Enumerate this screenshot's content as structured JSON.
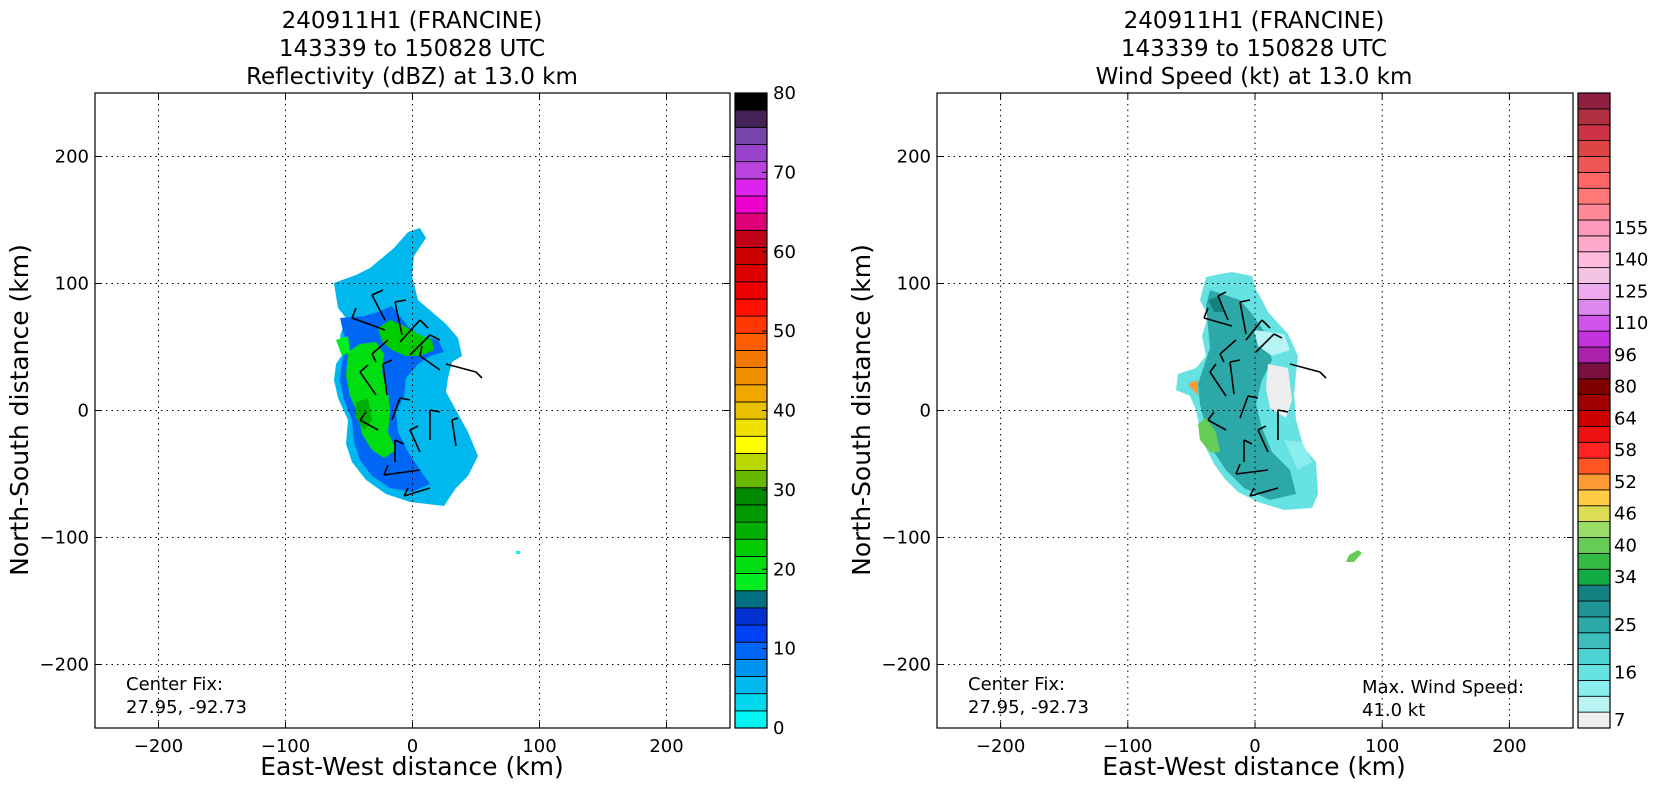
{
  "chart_data": [
    {
      "type": "heatmap",
      "title_lines": [
        "240911H1 (FRANCINE)",
        "143339 to 150828 UTC",
        "Reflectivity (dBZ) at 13.0 km"
      ],
      "xlabel": "East-West distance (km)",
      "ylabel": "North-South distance (km)",
      "xlim": [
        -250,
        250
      ],
      "ylim": [
        -250,
        250
      ],
      "x_ticks": [
        -200,
        -100,
        0,
        100,
        200
      ],
      "y_ticks": [
        -200,
        -100,
        0,
        100,
        200
      ],
      "grid": true,
      "annotation_left": [
        "Center Fix:",
        "27.95, -92.73"
      ],
      "colorbar": {
        "min": 0,
        "max": 80,
        "tick_values": [
          0,
          10,
          20,
          30,
          40,
          50,
          60,
          70,
          80
        ],
        "tick_labels": [
          "0",
          "10",
          "20",
          "30",
          "40",
          "50",
          "60",
          "70",
          "80"
        ],
        "colors": [
          "#00f5f5",
          "#00d8ee",
          "#00b8ee",
          "#0094f0",
          "#0066f5",
          "#0040f5",
          "#0030d0",
          "#007080",
          "#00ee22",
          "#00dd11",
          "#00cc00",
          "#00b000",
          "#009a00",
          "#008800",
          "#66b800",
          "#b8d800",
          "#ffff00",
          "#f0e000",
          "#e8c000",
          "#f0a800",
          "#f09000",
          "#f07800",
          "#ff5e00",
          "#ff3800",
          "#ff1000",
          "#ee0000",
          "#dd0000",
          "#cc0000",
          "#c00018",
          "#dd0077",
          "#ee00cc",
          "#dd22ee",
          "#b844dd",
          "#9944cc",
          "#7744aa",
          "#442255",
          "#000000"
        ]
      }
    },
    {
      "type": "heatmap",
      "title_lines": [
        "240911H1 (FRANCINE)",
        "143339 to 150828 UTC",
        "Wind Speed (kt) at 13.0 km"
      ],
      "xlabel": "East-West distance (km)",
      "ylabel": "North-South distance (km)",
      "xlim": [
        -250,
        250
      ],
      "ylim": [
        -250,
        250
      ],
      "x_ticks": [
        -200,
        -100,
        0,
        100,
        200
      ],
      "y_ticks": [
        -200,
        -100,
        0,
        100,
        200
      ],
      "grid": true,
      "annotation_left": [
        "Center Fix:",
        "27.95, -92.73"
      ],
      "annotation_right": [
        "Max. Wind Speed:",
        "41.0 kt"
      ],
      "colorbar": {
        "tick_labels": [
          "7",
          "16",
          "25",
          "34",
          "40",
          "46",
          "52",
          "58",
          "64",
          "80",
          "96",
          "110",
          "125",
          "140",
          "155"
        ],
        "tick_levels": [
          0,
          3,
          6,
          9,
          11,
          13,
          15,
          17,
          19,
          21,
          23,
          25,
          27,
          29,
          31
        ],
        "colors": [
          "#eeeeee",
          "#b8f4f4",
          "#8aeeee",
          "#66e2e2",
          "#4cd2d2",
          "#3cbcbc",
          "#2ca8a8",
          "#209494",
          "#148080",
          "#11aa44",
          "#33bb44",
          "#66cc55",
          "#99dd66",
          "#dddd55",
          "#ffcc44",
          "#ff9933",
          "#ff5522",
          "#ff2222",
          "#ee1111",
          "#cc0000",
          "#a00000",
          "#800000",
          "#7a1040",
          "#aa22aa",
          "#c433dd",
          "#d055ee",
          "#dd88ee",
          "#eeaaee",
          "#f4c4e4",
          "#ffbbdd",
          "#ffaacc",
          "#ff99bb",
          "#ff8899",
          "#ff7777",
          "#ff6666",
          "#ee5555",
          "#dd4444",
          "#cc3344",
          "#b03040",
          "#902040"
        ]
      }
    }
  ]
}
